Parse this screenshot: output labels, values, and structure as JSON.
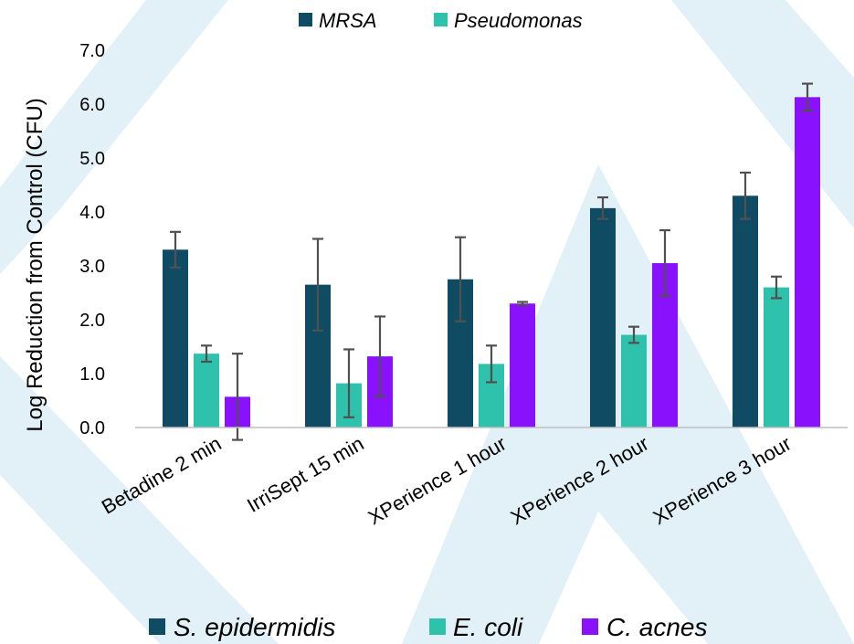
{
  "colors": {
    "background": "#ffffff",
    "watermark": "#e2f1f8",
    "axis": "#bfbfbf",
    "error_bar": "#505050"
  },
  "chart_data": {
    "type": "bar",
    "title": "",
    "xlabel": "",
    "ylabel": "Log Reduction from Control (CFU)",
    "ylim": [
      0,
      7
    ],
    "yticks": [
      "0.0",
      "1.0",
      "2.0",
      "3.0",
      "4.0",
      "5.0",
      "6.0",
      "7.0"
    ],
    "grid": false,
    "categories": [
      "Betadine 2 min",
      "IrriSept 15 min",
      "XPerience 1 hour",
      "XPerience 2 hour",
      "XPerience 3 hour"
    ],
    "series": [
      {
        "name": "S. epidermidis",
        "color": "#0f4c63",
        "values": [
          3.3,
          2.65,
          2.75,
          4.07,
          4.3
        ],
        "errors": [
          0.33,
          0.85,
          0.78,
          0.2,
          0.43
        ]
      },
      {
        "name": "E. coli",
        "color": "#2ec1ac",
        "values": [
          1.37,
          0.82,
          1.18,
          1.72,
          2.6
        ],
        "errors": [
          0.15,
          0.63,
          0.34,
          0.15,
          0.2
        ]
      },
      {
        "name": "C. acnes",
        "color": "#8a11fb",
        "values": [
          0.57,
          1.32,
          2.3,
          3.05,
          6.13
        ],
        "errors": [
          0.8,
          0.74,
          0.03,
          0.61,
          0.25
        ]
      }
    ],
    "legends": {
      "top": [
        {
          "label": "MRSA",
          "color": "#0f4c63"
        },
        {
          "label": "Pseudomonas",
          "color": "#2ec1ac"
        }
      ],
      "bottom": [
        {
          "label": "S. epidermidis",
          "color": "#0f4c63"
        },
        {
          "label": "E. coli",
          "color": "#2ec1ac"
        },
        {
          "label": "C. acnes",
          "color": "#8a11fb"
        }
      ]
    }
  }
}
